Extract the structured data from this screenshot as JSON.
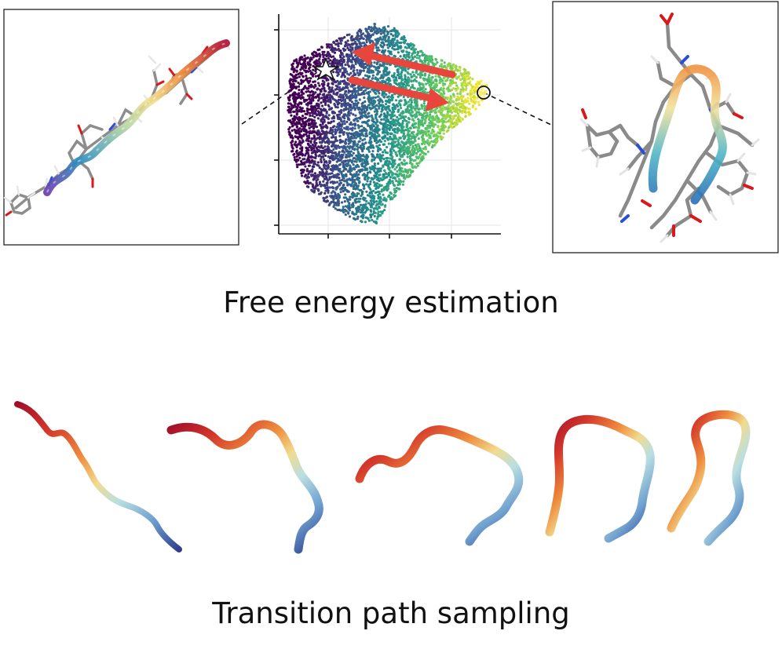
{
  "captions": {
    "free_energy": "Free energy estimation",
    "transition": "Transition path sampling"
  },
  "scatter_plot": {
    "colormap": [
      "#440154",
      "#3b528b",
      "#21918c",
      "#5ec962",
      "#fde725"
    ],
    "arrow_color": "#e8453c",
    "grid_color": "#e3e3e3",
    "start_marker": "star",
    "end_marker": "open-circle"
  },
  "structures": {
    "left": "extended peptide with helix ribbon",
    "right": "folded peptide with helix ribbon"
  },
  "snapshots": {
    "count": 5,
    "gradient": [
      "#2e3f8f",
      "#6fa0cf",
      "#b9dfe2",
      "#f1dc8f",
      "#ef8d3e",
      "#c92d2b",
      "#a10f2b"
    ]
  }
}
